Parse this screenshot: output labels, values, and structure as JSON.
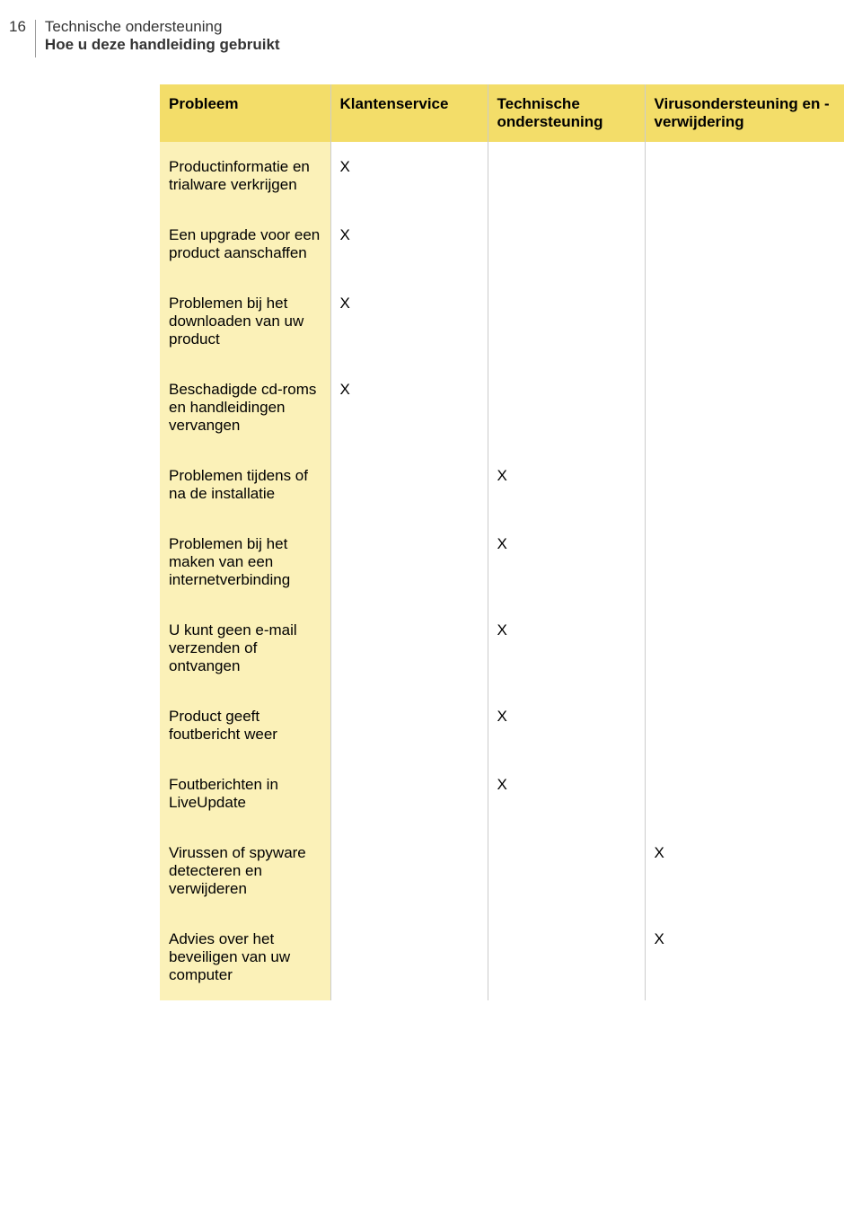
{
  "header": {
    "page_number": "16",
    "section_title": "Technische ondersteuning",
    "section_subtitle": "Hoe u deze handleiding gebruikt"
  },
  "table": {
    "type": "table",
    "header_bg": "#f3dd69",
    "row_label_bg": "#fbf1b8",
    "check_glyph": "X",
    "columns": [
      "Probleem",
      "Klantenservice",
      "Technische ondersteuning",
      "Virusondersteuning en -verwijdering"
    ],
    "rows": [
      {
        "label": "Productinformatie en trialware verkrijgen",
        "marks": [
          "X",
          "",
          ""
        ]
      },
      {
        "label": "Een upgrade voor een product aanschaffen",
        "marks": [
          "X",
          "",
          ""
        ]
      },
      {
        "label": "Problemen bij het downloaden van uw product",
        "marks": [
          "X",
          "",
          ""
        ]
      },
      {
        "label": "Beschadigde cd-roms en handleidingen vervangen",
        "marks": [
          "X",
          "",
          ""
        ]
      },
      {
        "label": "Problemen tijdens of na de installatie",
        "marks": [
          "",
          "X",
          ""
        ]
      },
      {
        "label": "Problemen bij het maken van een internetverbinding",
        "marks": [
          "",
          "X",
          ""
        ]
      },
      {
        "label": "U kunt geen e-mail verzenden of ontvangen",
        "marks": [
          "",
          "X",
          ""
        ]
      },
      {
        "label": "Product geeft foutbericht weer",
        "marks": [
          "",
          "X",
          ""
        ]
      },
      {
        "label": "Foutberichten in LiveUpdate",
        "marks": [
          "",
          "X",
          ""
        ]
      },
      {
        "label": "Virussen of spyware detecteren en verwijderen",
        "marks": [
          "",
          "",
          "X"
        ]
      },
      {
        "label": "Advies over het beveiligen van uw computer",
        "marks": [
          "",
          "",
          "X"
        ]
      }
    ]
  }
}
